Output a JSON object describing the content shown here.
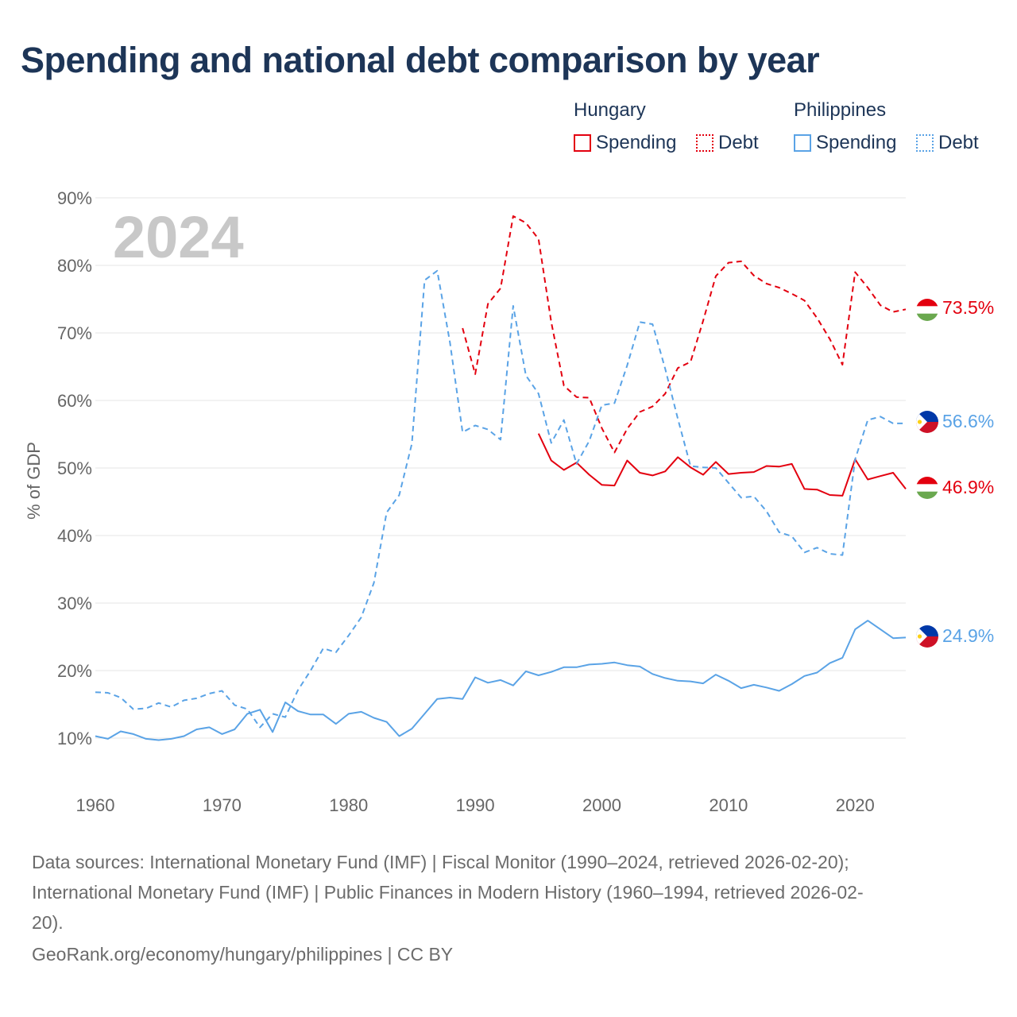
{
  "title": "Spending and national debt comparison by year",
  "legend": {
    "hungary_title": "Hungary",
    "philippines_title": "Philippines",
    "spending_label": "Spending",
    "debt_label": "Debt"
  },
  "colors": {
    "hungary": "#e3000f",
    "philippines": "#5aa3e6",
    "grid": "#e6e6e6",
    "axis_text": "#666666",
    "year_watermark": "#c8c8c8"
  },
  "year_watermark": "2024",
  "end_labels": {
    "hungary_debt": "73.5%",
    "philippines_debt": "56.6%",
    "hungary_spending": "46.9%",
    "philippines_spending": "24.9%"
  },
  "chart_data": {
    "type": "line",
    "title": "Spending and national debt comparison by year",
    "xlabel": "",
    "ylabel": "% of GDP",
    "xlim": [
      1960,
      2024
    ],
    "ylim": [
      0,
      90
    ],
    "x_ticks": [
      1960,
      1970,
      1980,
      1990,
      2000,
      2010,
      2020
    ],
    "y_ticks": [
      10,
      20,
      30,
      40,
      50,
      60,
      70,
      80,
      90
    ],
    "y_tick_labels": [
      "10%",
      "20%",
      "30%",
      "40%",
      "50%",
      "60%",
      "70%",
      "80%",
      "90%"
    ],
    "series": [
      {
        "name": "Hungary Debt",
        "country": "Hungary",
        "measure": "Debt",
        "style": "dashed",
        "x": [
          1989,
          1990,
          1991,
          1992,
          1993,
          1994,
          1995,
          1996,
          1997,
          1998,
          1999,
          2000,
          2001,
          2002,
          2003,
          2004,
          2005,
          2006,
          2007,
          2008,
          2009,
          2010,
          2011,
          2012,
          2013,
          2014,
          2015,
          2016,
          2017,
          2018,
          2019,
          2020,
          2021,
          2022,
          2023,
          2024
        ],
        "values": [
          70.7,
          63.9,
          74.3,
          76.6,
          87.3,
          86.3,
          83.9,
          71.6,
          62.2,
          60.5,
          60.4,
          55.9,
          52.3,
          55.8,
          58.3,
          59.1,
          61.0,
          64.8,
          65.7,
          71.8,
          78.4,
          80.4,
          80.6,
          78.5,
          77.3,
          76.7,
          75.8,
          74.8,
          72.2,
          69.1,
          65.3,
          79.0,
          76.7,
          74.1,
          73.1,
          73.5
        ]
      },
      {
        "name": "Hungary Spending",
        "country": "Hungary",
        "measure": "Spending",
        "style": "solid",
        "x": [
          1995,
          1996,
          1997,
          1998,
          1999,
          2000,
          2001,
          2002,
          2003,
          2004,
          2005,
          2006,
          2007,
          2008,
          2009,
          2010,
          2011,
          2012,
          2013,
          2014,
          2015,
          2016,
          2017,
          2018,
          2019,
          2020,
          2021,
          2022,
          2023,
          2024
        ],
        "values": [
          55.1,
          51.1,
          49.7,
          50.8,
          49.0,
          47.5,
          47.4,
          51.1,
          49.3,
          48.9,
          49.5,
          51.6,
          50.1,
          49.0,
          50.9,
          49.1,
          49.3,
          49.4,
          50.3,
          50.2,
          50.6,
          46.9,
          46.8,
          46.0,
          45.9,
          51.3,
          48.3,
          48.8,
          49.3,
          46.9
        ]
      },
      {
        "name": "Philippines Debt",
        "country": "Philippines",
        "measure": "Debt",
        "style": "dashed",
        "x": [
          1960,
          1961,
          1962,
          1963,
          1964,
          1965,
          1966,
          1967,
          1968,
          1969,
          1970,
          1971,
          1972,
          1973,
          1974,
          1975,
          1976,
          1977,
          1978,
          1979,
          1980,
          1981,
          1982,
          1983,
          1984,
          1985,
          1986,
          1987,
          1988,
          1989,
          1990,
          1991,
          1992,
          1993,
          1994,
          1995,
          1996,
          1997,
          1998,
          1999,
          2000,
          2001,
          2002,
          2003,
          2004,
          2005,
          2006,
          2007,
          2008,
          2009,
          2010,
          2011,
          2012,
          2013,
          2014,
          2015,
          2016,
          2017,
          2018,
          2019,
          2020,
          2021,
          2022,
          2023,
          2024
        ],
        "values": [
          16.8,
          16.7,
          16.0,
          14.3,
          14.4,
          15.2,
          14.6,
          15.6,
          15.9,
          16.6,
          17.0,
          14.9,
          14.3,
          11.6,
          13.6,
          13.1,
          17.1,
          20.0,
          23.3,
          22.7,
          25.2,
          27.9,
          33.0,
          43.4,
          46.0,
          53.6,
          77.8,
          79.2,
          68.6,
          55.3,
          56.3,
          55.7,
          54.2,
          74.0,
          63.7,
          61.0,
          53.7,
          57.1,
          50.6,
          54.0,
          59.3,
          59.6,
          65.2,
          71.6,
          71.3,
          64.7,
          57.3,
          50.3,
          50.1,
          50.0,
          47.8,
          45.6,
          45.8,
          43.6,
          40.5,
          39.9,
          37.5,
          38.2,
          37.3,
          37.1,
          51.3,
          57.1,
          57.6,
          56.6,
          56.6
        ]
      },
      {
        "name": "Philippines Spending",
        "country": "Philippines",
        "measure": "Spending",
        "style": "solid",
        "x": [
          1960,
          1961,
          1962,
          1963,
          1964,
          1965,
          1966,
          1967,
          1968,
          1969,
          1970,
          1971,
          1972,
          1973,
          1974,
          1975,
          1976,
          1977,
          1978,
          1979,
          1980,
          1981,
          1982,
          1983,
          1984,
          1985,
          1986,
          1987,
          1988,
          1989,
          1990,
          1991,
          1992,
          1993,
          1994,
          1995,
          1996,
          1997,
          1998,
          1999,
          2000,
          2001,
          2002,
          2003,
          2004,
          2005,
          2006,
          2007,
          2008,
          2009,
          2010,
          2011,
          2012,
          2013,
          2014,
          2015,
          2016,
          2017,
          2018,
          2019,
          2020,
          2021,
          2022,
          2023,
          2024
        ],
        "values": [
          10.3,
          9.9,
          11.0,
          10.6,
          9.9,
          9.7,
          9.9,
          10.3,
          11.3,
          11.6,
          10.6,
          11.3,
          13.6,
          14.2,
          10.9,
          15.3,
          14.0,
          13.5,
          13.5,
          12.1,
          13.6,
          13.9,
          13.0,
          12.4,
          10.3,
          11.4,
          13.6,
          15.8,
          16.0,
          15.8,
          19.0,
          18.2,
          18.6,
          17.8,
          19.9,
          19.3,
          19.8,
          20.5,
          20.5,
          20.9,
          21.0,
          21.2,
          20.8,
          20.6,
          19.5,
          18.9,
          18.5,
          18.4,
          18.1,
          19.4,
          18.5,
          17.4,
          17.9,
          17.5,
          17.0,
          18.0,
          19.2,
          19.7,
          21.1,
          21.9,
          26.1,
          27.4,
          26.1,
          24.8,
          24.9
        ]
      }
    ]
  },
  "footer": {
    "line1": "Data sources: International Monetary Fund (IMF) | Fiscal Monitor (1990–2024, retrieved 2026-02-20);",
    "line2": "International Monetary Fund (IMF) | Public Finances in Modern History (1960–1994, retrieved 2026-02-",
    "line3": "20).",
    "line4": "GeoRank.org/economy/hungary/philippines | CC BY"
  }
}
